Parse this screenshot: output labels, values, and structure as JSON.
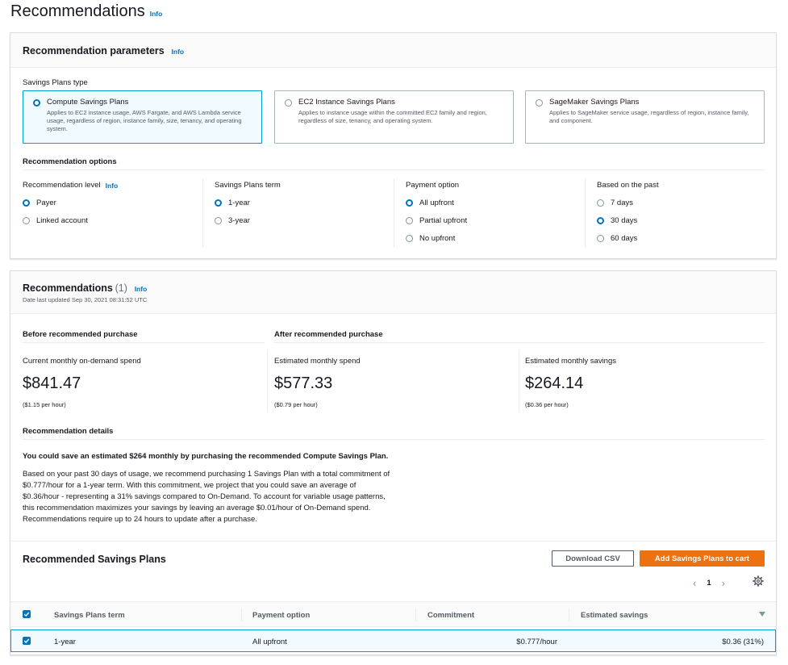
{
  "page": {
    "title": "Recommendations",
    "info": "Info"
  },
  "params": {
    "title": "Recommendation parameters",
    "info": "Info",
    "type_label": "Savings Plans type",
    "types": [
      {
        "title": "Compute Savings Plans",
        "desc": "Applies to EC2 instance usage, AWS Fargate, and AWS Lambda service usage, regardless of region, instance family, size, tenancy, and operating system."
      },
      {
        "title": "EC2 Instance Savings Plans",
        "desc": "Applies to instance usage within the committed EC2 family and region, regardless of size, tenancy, and operating system."
      },
      {
        "title": "SageMaker Savings Plans",
        "desc": "Applies to SageMaker service usage, regardless of region, instance family, and component."
      }
    ],
    "options_label": "Recommendation options",
    "level": {
      "label": "Recommendation level",
      "info": "Info",
      "options": [
        "Payer",
        "Linked account"
      ]
    },
    "term": {
      "label": "Savings Plans term",
      "options": [
        "1-year",
        "3-year"
      ]
    },
    "payment": {
      "label": "Payment option",
      "options": [
        "All upfront",
        "Partial upfront",
        "No upfront"
      ]
    },
    "past": {
      "label": "Based on the past",
      "options": [
        "7 days",
        "30 days",
        "60 days"
      ]
    }
  },
  "recs": {
    "title": "Recommendations",
    "count": "(1)",
    "info": "Info",
    "date": "Date last updated Sep 30, 2021 08:31:52 UTC",
    "before_label": "Before recommended purchase",
    "after_label": "After recommended purchase",
    "metrics": [
      {
        "label": "Current monthly on-demand spend",
        "value": "$841.47",
        "sub": "($1.15 per hour)"
      },
      {
        "label": "Estimated monthly spend",
        "value": "$577.33",
        "sub": "($0.79 per hour)"
      },
      {
        "label": "Estimated monthly savings",
        "value": "$264.14",
        "sub": "($0.36 per hour)"
      }
    ],
    "details_label": "Recommendation details",
    "details_strong": "You could save an estimated $264 monthly by purchasing the recommended Compute Savings Plan.",
    "details_lines": [
      "Based on your past 30 days of usage, we recommend purchasing 1 Savings Plan with a total commitment of",
      "$0.777/hour for a 1-year term. With this commitment, we project that you could save an average of",
      "$0.36/hour - representing a 31% savings compared to On-Demand. To account for variable usage patterns,",
      "this recommendation maximizes your savings by leaving an average $0.01/hour of On-Demand spend.",
      "Recommendations require up to 24 hours to update after a purchase."
    ]
  },
  "table": {
    "title": "Recommended Savings Plans",
    "download": "Download CSV",
    "add": "Add Savings Plans to cart",
    "page": "1",
    "headers": [
      "Savings Plans term",
      "Payment option",
      "Commitment",
      "Estimated savings"
    ],
    "row": {
      "term": "1-year",
      "payment": "All upfront",
      "commitment": "$0.777/hour",
      "savings": "$0.36 (31%)"
    }
  }
}
